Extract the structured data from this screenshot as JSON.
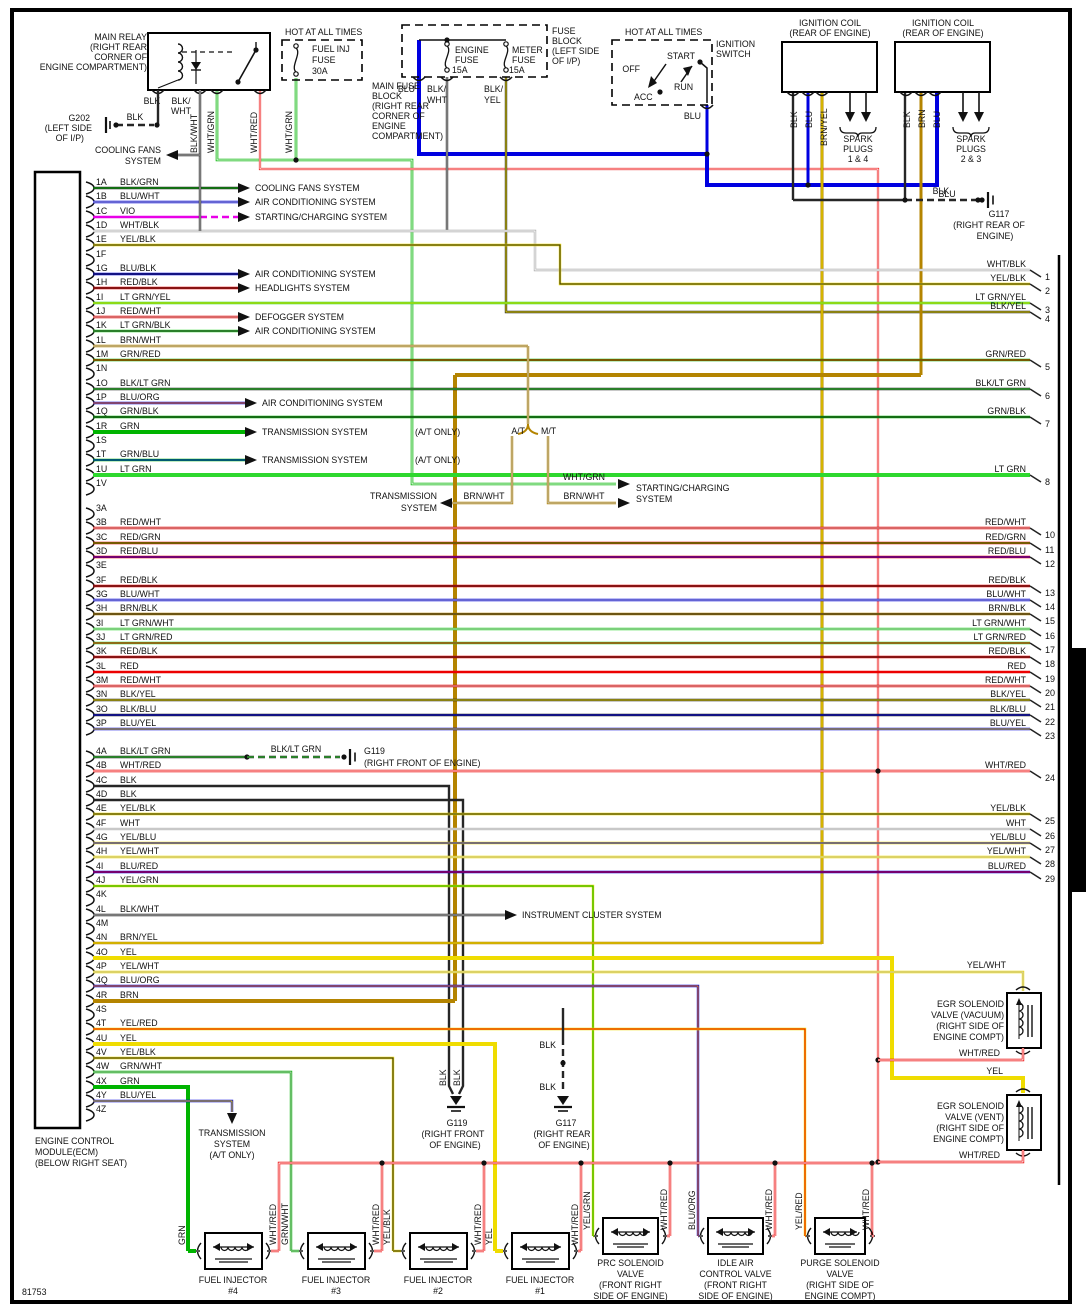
{
  "figure_number": "81753",
  "palette": {
    "BLK": "#262626",
    "WHT": "#c8c8c8",
    "RED": "#ec0000",
    "BLU": "#0000e0",
    "GRN": "#00b400",
    "LT GRN": "#2ed82e",
    "YEL": "#efdc00",
    "BRN": "#b48400",
    "VIO": "#e800e8",
    "ORG": "#ff8800"
  },
  "ecm": {
    "label": [
      "ENGINE CONTROL",
      "MODULE(ECM)",
      "(BELOW RIGHT SEAT)"
    ],
    "connector1": [
      {
        "pin": "1A",
        "color": "BLK/GRN",
        "dest": "COOLING FANS SYSTEM"
      },
      {
        "pin": "1B",
        "color": "BLU/WHT",
        "dest": "AIR CONDITIONING SYSTEM"
      },
      {
        "pin": "1C",
        "color": "VIO",
        "dest": "STARTING/CHARGING SYSTEM"
      },
      {
        "pin": "1D",
        "color": "WHT/BLK"
      },
      {
        "pin": "1E",
        "color": "YEL/BLK"
      },
      {
        "pin": "1F"
      },
      {
        "pin": "1G",
        "color": "BLU/BLK",
        "dest": "AIR CONDITIONING SYSTEM"
      },
      {
        "pin": "1H",
        "color": "RED/BLK",
        "dest": "HEADLIGHTS SYSTEM"
      },
      {
        "pin": "1I",
        "color": "LT GRN/YEL"
      },
      {
        "pin": "1J",
        "color": "RED/WHT",
        "dest": "DEFOGGER SYSTEM"
      },
      {
        "pin": "1K",
        "color": "LT GRN/BLK",
        "dest": "AIR CONDITIONING SYSTEM"
      },
      {
        "pin": "1L",
        "color": "BRN/WHT"
      },
      {
        "pin": "1M",
        "color": "GRN/RED"
      },
      {
        "pin": "1N"
      },
      {
        "pin": "1O",
        "color": "BLK/LT GRN"
      },
      {
        "pin": "1P",
        "color": "BLU/ORG",
        "dest": "AIR CONDITIONING SYSTEM"
      },
      {
        "pin": "1Q",
        "color": "GRN/BLK"
      },
      {
        "pin": "1R",
        "color": "GRN",
        "dest": "TRANSMISSION SYSTEM",
        "dest2": "(A/T ONLY)"
      },
      {
        "pin": "1S"
      },
      {
        "pin": "1T",
        "color": "GRN/BLU",
        "dest": "TRANSMISSION SYSTEM",
        "dest2": "(A/T ONLY)"
      },
      {
        "pin": "1U",
        "color": "LT GRN"
      },
      {
        "pin": "1V"
      }
    ],
    "connector3": [
      {
        "pin": "3A"
      },
      {
        "pin": "3B",
        "color": "RED/WHT"
      },
      {
        "pin": "3C",
        "color": "RED/GRN"
      },
      {
        "pin": "3D",
        "color": "RED/BLU"
      },
      {
        "pin": "3E"
      },
      {
        "pin": "3F",
        "color": "RED/BLK"
      },
      {
        "pin": "3G",
        "color": "BLU/WHT"
      },
      {
        "pin": "3H",
        "color": "BRN/BLK"
      },
      {
        "pin": "3I",
        "color": "LT GRN/WHT"
      },
      {
        "pin": "3J",
        "color": "LT GRN/RED"
      },
      {
        "pin": "3K",
        "color": "RED/BLK"
      },
      {
        "pin": "3L",
        "color": "RED"
      },
      {
        "pin": "3M",
        "color": "RED/WHT"
      },
      {
        "pin": "3N",
        "color": "BLK/YEL"
      },
      {
        "pin": "3O",
        "color": "BLK/BLU"
      },
      {
        "pin": "3P",
        "color": "BLU/YEL"
      }
    ],
    "connector4": [
      {
        "pin": "4A",
        "color": "BLK/LT GRN"
      },
      {
        "pin": "4B",
        "color": "WHT/RED"
      },
      {
        "pin": "4C",
        "color": "BLK"
      },
      {
        "pin": "4D",
        "color": "BLK"
      },
      {
        "pin": "4E",
        "color": "YEL/BLK"
      },
      {
        "pin": "4F",
        "color": "WHT"
      },
      {
        "pin": "4G",
        "color": "YEL/BLU"
      },
      {
        "pin": "4H",
        "color": "YEL/WHT"
      },
      {
        "pin": "4I",
        "color": "BLU/RED"
      },
      {
        "pin": "4J",
        "color": "YEL/GRN"
      },
      {
        "pin": "4K"
      },
      {
        "pin": "4L",
        "color": "BLK/WHT",
        "dest": "INSTRUMENT CLUSTER SYSTEM"
      },
      {
        "pin": "4M"
      },
      {
        "pin": "4N",
        "color": "BRN/YEL"
      },
      {
        "pin": "4O",
        "color": "YEL"
      },
      {
        "pin": "4P",
        "color": "YEL/WHT"
      },
      {
        "pin": "4Q",
        "color": "BLU/ORG"
      },
      {
        "pin": "4R",
        "color": "BRN"
      },
      {
        "pin": "4S"
      },
      {
        "pin": "4T",
        "color": "YEL/RED"
      },
      {
        "pin": "4U",
        "color": "YEL"
      },
      {
        "pin": "4V",
        "color": "YEL/BLK"
      },
      {
        "pin": "4W",
        "color": "GRN/WHT"
      },
      {
        "pin": "4X",
        "color": "GRN"
      },
      {
        "pin": "4Y",
        "color": "BLU/YEL"
      },
      {
        "pin": "4Z"
      }
    ]
  },
  "right_stubs": [
    {
      "num": "1",
      "color": "WHT/BLK"
    },
    {
      "num": "2",
      "color": "YEL/BLK"
    },
    {
      "num": "3",
      "color": "LT GRN/YEL"
    },
    {
      "num": "4",
      "color": "BLK/YEL"
    },
    {
      "num": "5",
      "color": "GRN/RED"
    },
    {
      "num": "6",
      "color": "BLK/LT GRN"
    },
    {
      "num": "7",
      "color": "GRN/BLK"
    },
    {
      "num": "8",
      "color": "LT GRN"
    },
    {
      "num": "10",
      "color": "RED/WHT"
    },
    {
      "num": "11",
      "color": "RED/GRN"
    },
    {
      "num": "12",
      "color": "RED/BLU"
    },
    {
      "num": "13",
      "color": "RED/BLK"
    },
    {
      "num": "14",
      "color": "BLU/WHT"
    },
    {
      "num": "15",
      "color": "BRN/BLK"
    },
    {
      "num": "16",
      "color": "LT GRN/WHT"
    },
    {
      "num": "17",
      "color": "LT GRN/RED"
    },
    {
      "num": "18",
      "color": "RED/BLK"
    },
    {
      "num": "19",
      "color": "RED"
    },
    {
      "num": "20",
      "color": "RED/WHT"
    },
    {
      "num": "21",
      "color": "BLK/YEL"
    },
    {
      "num": "22",
      "color": "BLK/BLU"
    },
    {
      "num": "23",
      "color": "BLU/YEL"
    },
    {
      "num": "24",
      "color": "WHT/RED"
    },
    {
      "num": "25",
      "color": "YEL/BLK"
    },
    {
      "num": "26",
      "color": "WHT"
    },
    {
      "num": "27",
      "color": "YEL/BLU"
    },
    {
      "num": "28",
      "color": "YEL/WHT"
    },
    {
      "num": "29",
      "color": "BLU/RED"
    }
  ],
  "components": {
    "main_relay": {
      "label": [
        "MAIN RELAY",
        "(RIGHT REAR",
        "CORNER OF",
        "ENGINE COMPARTMENT)"
      ],
      "pin1": "BLK",
      "pin2a": "BLK/",
      "pin2b": "WHT",
      "pin2_wire": "BLK/WHT",
      "pin3_wire": "WHT/GRN",
      "pin4_wire": "WHT/RED"
    },
    "g202": {
      "name": "G202",
      "loc": [
        "(LEFT SIDE",
        "OF I/P)"
      ],
      "wire": "BLK"
    },
    "cooling_fans": {
      "label": [
        "COOLING FANS",
        "SYSTEM"
      ]
    },
    "fuel_inj_fuse": {
      "header": "HOT AT ALL TIMES",
      "label": [
        "FUEL INJ",
        "FUSE",
        "30A"
      ],
      "wire": "WHT/GRN"
    },
    "main_fuse_block": {
      "label": [
        "MAIN FUSE",
        "BLOCK",
        "(RIGHT REAR",
        "CORNER OF",
        "ENGINE",
        "COMPARTMENT)"
      ]
    },
    "fuse_block_ip": {
      "label": [
        "FUSE",
        "BLOCK",
        "(LEFT SIDE",
        "OF I/P)"
      ],
      "fuse1": [
        "ENGINE",
        "FUSE"
      ],
      "fuse1_amps": "15A",
      "fuse2": [
        "METER",
        "FUSE"
      ],
      "fuse2_amps": "15A",
      "supply": "BLU",
      "out1a": "BLK/",
      "out1b": "WHT",
      "out2a": "BLK/",
      "out2b": "YEL"
    },
    "ignition_switch": {
      "header": "HOT AT ALL TIMES",
      "label": [
        "IGNITION",
        "SWITCH"
      ],
      "off": "OFF",
      "acc": "ACC",
      "start": "START",
      "run": "RUN",
      "wire": "BLU"
    },
    "coil1": {
      "label": [
        "IGNITION COIL",
        "(REAR OF ENGINE)"
      ],
      "wires": [
        "BLK",
        "BLU",
        "BRN/YEL"
      ],
      "spark": [
        "SPARK",
        "PLUGS",
        "1 & 4"
      ]
    },
    "coil2": {
      "label": [
        "IGNITION COIL",
        "(REAR OF ENGINE)"
      ],
      "wires": [
        "BLK",
        "BRN",
        "BLU"
      ],
      "spark": [
        "SPARK",
        "PLUGS",
        "2 & 3"
      ]
    },
    "blue_bus_label": "BLU",
    "g117_top": {
      "name": "G117",
      "loc": [
        "(RIGHT REAR OF",
        "ENGINE)"
      ],
      "wire": "BLK"
    },
    "g119_mid": {
      "name": "G119",
      "loc": [
        "(RIGHT FRONT OF ENGINE)"
      ],
      "wire": "BLK/LT GRN"
    },
    "at_mt": {
      "at": "A/T",
      "mt": "M/T",
      "wire_at": "BRN/WHT",
      "wire_mt": "BRN/WHT",
      "wire_start": "WHT/GRN",
      "trans_label": [
        "TRANSMISSION",
        "SYSTEM"
      ],
      "start_label": [
        "STARTING/CHARGING",
        "SYSTEM"
      ]
    },
    "trans_bottom": {
      "label": [
        "TRANSMISSION",
        "SYSTEM",
        "(A/T ONLY)"
      ]
    },
    "g119_bot": {
      "name": "G119",
      "loc": [
        "(RIGHT FRONT",
        "OF ENGINE)"
      ],
      "wires": [
        "BLK",
        "BLK"
      ]
    },
    "g117_bot": {
      "name": "G117",
      "loc": [
        "(RIGHT REAR",
        "OF ENGINE)"
      ],
      "wires": [
        "BLK",
        "BLK"
      ]
    },
    "egr_vacuum": {
      "label": [
        "EGR SOLENOID",
        "VALVE (VACUUM)",
        "(RIGHT SIDE OF",
        "ENGINE COMPT)"
      ],
      "top_wire": "YEL/WHT",
      "bottom_wire": "WHT/RED"
    },
    "egr_vent": {
      "label": [
        "EGR SOLENOID",
        "VALVE (VENT)",
        "(RIGHT SIDE OF",
        "ENGINE COMPT)"
      ],
      "top_wire": "YEL",
      "bottom_wire": "WHT/RED"
    },
    "injectors": [
      {
        "label": [
          "FUEL INJECTOR",
          "#4"
        ],
        "left_wire": "GRN",
        "right_wire": "WHT/RED"
      },
      {
        "label": [
          "FUEL INJECTOR",
          "#3"
        ],
        "left_wire": "GRN/WHT",
        "right_wire": "WHT/RED"
      },
      {
        "label": [
          "FUEL INJECTOR",
          "#2"
        ],
        "left_wire": "YEL/BLK",
        "right_wire": "WHT/RED"
      },
      {
        "label": [
          "FUEL INJECTOR",
          "#1"
        ],
        "left_wire": "YEL",
        "right_wire": "WHT/RED"
      }
    ],
    "solenoids": [
      {
        "label": [
          "PRC SOLENOID",
          "VALVE",
          "(FRONT RIGHT",
          "SIDE OF ENGINE)"
        ],
        "left_wire": "YEL/GRN",
        "right_wire": "WHT/RED"
      },
      {
        "label": [
          "IDLE AIR",
          "CONTROL VALVE",
          "(FRONT RIGHT",
          "SIDE OF ENGINE)"
        ],
        "left_wire": "BLU/ORG",
        "right_wire": "WHT/RED"
      },
      {
        "label": [
          "PURGE SOLENOID",
          "VALVE",
          "(RIGHT SIDE OF",
          "ENGINE COMPT)"
        ],
        "left_wire": "YEL/RED",
        "right_wire": "WHT/RED"
      }
    ]
  }
}
